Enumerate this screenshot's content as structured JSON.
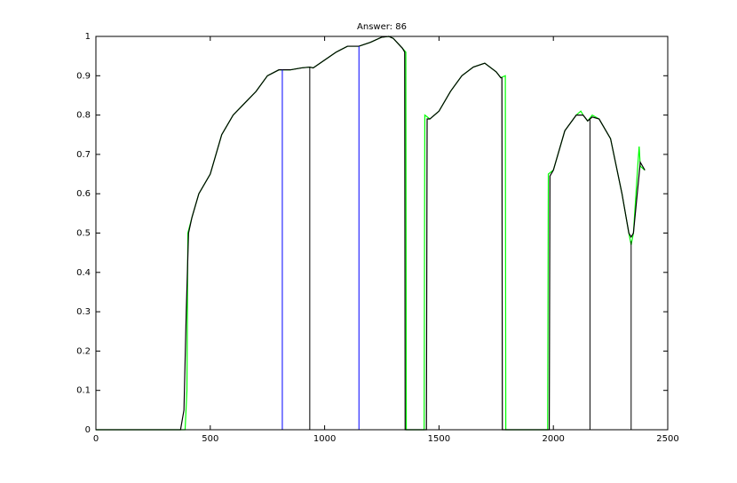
{
  "chart_data": {
    "type": "line",
    "title": "Answer: 86",
    "xlim": [
      0,
      2500
    ],
    "ylim": [
      0,
      1
    ],
    "xticks": [
      0,
      500,
      1000,
      1500,
      2000,
      2500
    ],
    "yticks": [
      0,
      0.1,
      0.2,
      0.3,
      0.4,
      0.5,
      0.6,
      0.7,
      0.8,
      0.9,
      1
    ],
    "series": [
      {
        "color": "#00ff00",
        "x": [
          0,
          390,
          398,
          402,
          420,
          450,
          500,
          550,
          600,
          650,
          700,
          750,
          800,
          850,
          900,
          935,
          950,
          1000,
          1050,
          1100,
          1150,
          1200,
          1250,
          1280,
          1300,
          1340,
          1355,
          1357,
          1435,
          1438,
          1460,
          1500,
          1550,
          1600,
          1650,
          1700,
          1750,
          1770,
          1790,
          1792,
          1975,
          1978,
          2000,
          2050,
          2100,
          2120,
          2130,
          2150,
          2170,
          2200,
          2250,
          2300,
          2330,
          2340,
          2350,
          2370,
          2375,
          2380,
          2400
        ],
        "values": [
          0,
          0,
          0.1,
          0.5,
          0.54,
          0.6,
          0.65,
          0.75,
          0.8,
          0.83,
          0.86,
          0.9,
          0.915,
          0.915,
          0.92,
          0.922,
          0.92,
          0.94,
          0.96,
          0.975,
          0.975,
          0.985,
          0.998,
          1.0,
          0.995,
          0.97,
          0.96,
          0,
          0,
          0.8,
          0.79,
          0.81,
          0.86,
          0.9,
          0.922,
          0.932,
          0.91,
          0.895,
          0.9,
          0,
          0,
          0.65,
          0.66,
          0.76,
          0.8,
          0.81,
          0.8,
          0.785,
          0.8,
          0.79,
          0.74,
          0.6,
          0.5,
          0.47,
          0.5,
          0.68,
          0.72,
          0.67,
          0.66
        ]
      },
      {
        "color": "#000000",
        "x": [
          0,
          370,
          385,
          395,
          405,
          420,
          450,
          500,
          550,
          600,
          650,
          700,
          750,
          800,
          850,
          900,
          935,
          950,
          1000,
          1050,
          1100,
          1150,
          1200,
          1250,
          1280,
          1300,
          1340,
          1350,
          1352,
          1445,
          1448,
          1460,
          1500,
          1550,
          1600,
          1650,
          1700,
          1750,
          1770,
          1775,
          1777,
          1982,
          1985,
          2000,
          2050,
          2100,
          2130,
          2150,
          2170,
          2200,
          2250,
          2300,
          2330,
          2340,
          2350,
          2380,
          2400
        ],
        "values": [
          0,
          0,
          0.05,
          0.3,
          0.5,
          0.54,
          0.6,
          0.65,
          0.75,
          0.8,
          0.83,
          0.86,
          0.9,
          0.915,
          0.915,
          0.92,
          0.922,
          0.92,
          0.94,
          0.96,
          0.975,
          0.975,
          0.985,
          0.998,
          1.0,
          0.995,
          0.97,
          0.96,
          0,
          0,
          0.79,
          0.79,
          0.81,
          0.86,
          0.9,
          0.922,
          0.932,
          0.91,
          0.895,
          0.895,
          0,
          0,
          0.645,
          0.66,
          0.76,
          0.8,
          0.8,
          0.785,
          0.795,
          0.79,
          0.74,
          0.6,
          0.5,
          0.49,
          0.5,
          0.68,
          0.66
        ]
      }
    ],
    "vlines": [
      {
        "x": 815,
        "top": 0.915,
        "color": "#0000ff"
      },
      {
        "x": 935,
        "top": 0.922,
        "color": "#000000"
      },
      {
        "x": 1150,
        "top": 0.975,
        "color": "#0000ff"
      },
      {
        "x": 2160,
        "top": 0.79,
        "color": "#000000"
      },
      {
        "x": 2340,
        "top": 0.48,
        "color": "#000000"
      }
    ]
  }
}
